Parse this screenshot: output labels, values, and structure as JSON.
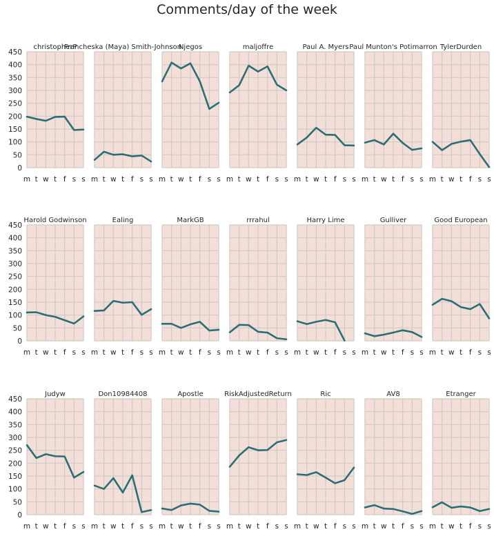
{
  "title": "Comments/day of the week",
  "colors": {
    "panel_bg": "#f4dfd8",
    "grid": "#cfc9c7",
    "line": "#2a6f73"
  },
  "chart_data": [
    {
      "type": "line",
      "title": "christopherP",
      "categories": [
        "m",
        "t",
        "w",
        "t",
        "f",
        "s",
        "s"
      ],
      "values": [
        198,
        189,
        182,
        197,
        198,
        146,
        148
      ],
      "ylim": [
        0,
        450
      ],
      "yticks": [
        0,
        50,
        100,
        150,
        200,
        250,
        300,
        350,
        400,
        450
      ]
    },
    {
      "type": "line",
      "title": "Francheska (Maya) Smith-Johnson",
      "categories": [
        "m",
        "t",
        "w",
        "t",
        "f",
        "s",
        "s"
      ],
      "values": [
        30,
        62,
        50,
        52,
        44,
        47,
        24
      ],
      "ylim": [
        0,
        450
      ],
      "yticks": [
        0,
        50,
        100,
        150,
        200,
        250,
        300,
        350,
        400,
        450
      ]
    },
    {
      "type": "line",
      "title": "Njegos",
      "categories": [
        "m",
        "t",
        "w",
        "t",
        "f",
        "s",
        "s"
      ],
      "values": [
        335,
        408,
        385,
        405,
        335,
        228,
        252
      ],
      "ylim": [
        0,
        450
      ],
      "yticks": [
        0,
        50,
        100,
        150,
        200,
        250,
        300,
        350,
        400,
        450
      ]
    },
    {
      "type": "line",
      "title": "maljoffre",
      "categories": [
        "m",
        "t",
        "w",
        "t",
        "f",
        "s",
        "s"
      ],
      "values": [
        292,
        320,
        396,
        373,
        393,
        322,
        300
      ],
      "ylim": [
        0,
        450
      ],
      "yticks": [
        0,
        50,
        100,
        150,
        200,
        250,
        300,
        350,
        400,
        450
      ]
    },
    {
      "type": "line",
      "title": "Paul A. Myers",
      "categories": [
        "m",
        "t",
        "w",
        "t",
        "f",
        "s",
        "s"
      ],
      "values": [
        90,
        117,
        155,
        128,
        127,
        87,
        86
      ],
      "ylim": [
        0,
        450
      ],
      "yticks": [
        0,
        50,
        100,
        150,
        200,
        250,
        300,
        350,
        400,
        450
      ]
    },
    {
      "type": "line",
      "title": "Paul Munton's Potimarron",
      "categories": [
        "m",
        "t",
        "w",
        "t",
        "f",
        "s",
        "s"
      ],
      "values": [
        97,
        107,
        90,
        132,
        96,
        69,
        75
      ],
      "ylim": [
        0,
        450
      ],
      "yticks": [
        0,
        50,
        100,
        150,
        200,
        250,
        300,
        350,
        400,
        450
      ]
    },
    {
      "type": "line",
      "title": "TylerDurden",
      "categories": [
        "m",
        "t",
        "w",
        "t",
        "f",
        "s",
        "s"
      ],
      "values": [
        100,
        68,
        92,
        101,
        107,
        53,
        2
      ],
      "ylim": [
        0,
        450
      ],
      "yticks": [
        0,
        50,
        100,
        150,
        200,
        250,
        300,
        350,
        400,
        450
      ]
    },
    {
      "type": "line",
      "title": "Harold Godwinson",
      "categories": [
        "m",
        "t",
        "w",
        "t",
        "f",
        "s",
        "s"
      ],
      "values": [
        110,
        111,
        100,
        93,
        80,
        67,
        95
      ],
      "ylim": [
        0,
        450
      ],
      "yticks": [
        0,
        50,
        100,
        150,
        200,
        250,
        300,
        350,
        400,
        450
      ]
    },
    {
      "type": "line",
      "title": "Ealing",
      "categories": [
        "m",
        "t",
        "w",
        "t",
        "f",
        "s",
        "s"
      ],
      "values": [
        116,
        118,
        155,
        148,
        150,
        101,
        123
      ],
      "ylim": [
        0,
        450
      ],
      "yticks": [
        0,
        50,
        100,
        150,
        200,
        250,
        300,
        350,
        400,
        450
      ]
    },
    {
      "type": "line",
      "title": "MarkGB",
      "categories": [
        "m",
        "t",
        "w",
        "t",
        "f",
        "s",
        "s"
      ],
      "values": [
        66,
        66,
        50,
        64,
        74,
        40,
        43
      ],
      "ylim": [
        0,
        450
      ],
      "yticks": [
        0,
        50,
        100,
        150,
        200,
        250,
        300,
        350,
        400,
        450
      ]
    },
    {
      "type": "line",
      "title": "rrrahul",
      "categories": [
        "m",
        "t",
        "w",
        "t",
        "f",
        "s",
        "s"
      ],
      "values": [
        33,
        62,
        61,
        35,
        32,
        10,
        6
      ],
      "ylim": [
        0,
        450
      ],
      "yticks": [
        0,
        50,
        100,
        150,
        200,
        250,
        300,
        350,
        400,
        450
      ]
    },
    {
      "type": "line",
      "title": "Harry Lime",
      "categories": [
        "m",
        "t",
        "w",
        "t",
        "f",
        "s",
        "s"
      ],
      "values": [
        76,
        65,
        74,
        81,
        72,
        1,
        null
      ],
      "ylim": [
        0,
        450
      ],
      "yticks": [
        0,
        50,
        100,
        150,
        200,
        250,
        300,
        350,
        400,
        450
      ]
    },
    {
      "type": "line",
      "title": "Gulliver",
      "categories": [
        "m",
        "t",
        "w",
        "t",
        "f",
        "s",
        "s"
      ],
      "values": [
        29,
        18,
        24,
        32,
        41,
        34,
        15
      ],
      "ylim": [
        0,
        450
      ],
      "yticks": [
        0,
        50,
        100,
        150,
        200,
        250,
        300,
        350,
        400,
        450
      ]
    },
    {
      "type": "line",
      "title": "Good European",
      "categories": [
        "m",
        "t",
        "w",
        "t",
        "f",
        "s",
        "s"
      ],
      "values": [
        140,
        163,
        154,
        131,
        123,
        143,
        87
      ],
      "ylim": [
        0,
        450
      ],
      "yticks": [
        0,
        50,
        100,
        150,
        200,
        250,
        300,
        350,
        400,
        450
      ]
    },
    {
      "type": "line",
      "title": "Judyw",
      "categories": [
        "m",
        "t",
        "w",
        "t",
        "f",
        "s",
        "s"
      ],
      "values": [
        270,
        220,
        235,
        227,
        226,
        144,
        166
      ],
      "ylim": [
        0,
        450
      ],
      "yticks": [
        0,
        50,
        100,
        150,
        200,
        250,
        300,
        350,
        400,
        450
      ]
    },
    {
      "type": "line",
      "title": "Don10984408",
      "categories": [
        "m",
        "t",
        "w",
        "t",
        "f",
        "s",
        "s"
      ],
      "values": [
        113,
        100,
        142,
        86,
        153,
        10,
        18
      ],
      "ylim": [
        0,
        450
      ],
      "yticks": [
        0,
        50,
        100,
        150,
        200,
        250,
        300,
        350,
        400,
        450
      ]
    },
    {
      "type": "line",
      "title": "Apostle",
      "categories": [
        "m",
        "t",
        "w",
        "t",
        "f",
        "s",
        "s"
      ],
      "values": [
        24,
        18,
        36,
        43,
        39,
        15,
        12
      ],
      "ylim": [
        0,
        450
      ],
      "yticks": [
        0,
        50,
        100,
        150,
        200,
        250,
        300,
        350,
        400,
        450
      ]
    },
    {
      "type": "line",
      "title": "RiskAdjustedReturn",
      "categories": [
        "m",
        "t",
        "w",
        "t",
        "f",
        "s",
        "s"
      ],
      "values": [
        186,
        230,
        262,
        250,
        251,
        281,
        290
      ],
      "ylim": [
        0,
        450
      ],
      "yticks": [
        0,
        50,
        100,
        150,
        200,
        250,
        300,
        350,
        400,
        450
      ]
    },
    {
      "type": "line",
      "title": "Ric",
      "categories": [
        "m",
        "t",
        "w",
        "t",
        "f",
        "s",
        "s"
      ],
      "values": [
        157,
        154,
        165,
        144,
        122,
        134,
        183
      ],
      "ylim": [
        0,
        450
      ],
      "yticks": [
        0,
        50,
        100,
        150,
        200,
        250,
        300,
        350,
        400,
        450
      ]
    },
    {
      "type": "line",
      "title": "AV8",
      "categories": [
        "m",
        "t",
        "w",
        "t",
        "f",
        "s",
        "s"
      ],
      "values": [
        28,
        37,
        24,
        22,
        13,
        3,
        14
      ],
      "ylim": [
        0,
        450
      ],
      "yticks": [
        0,
        50,
        100,
        150,
        200,
        250,
        300,
        350,
        400,
        450
      ]
    },
    {
      "type": "line",
      "title": "Etranger",
      "categories": [
        "m",
        "t",
        "w",
        "t",
        "f",
        "s",
        "s"
      ],
      "values": [
        29,
        48,
        27,
        32,
        28,
        14,
        22
      ],
      "ylim": [
        0,
        450
      ],
      "yticks": [
        0,
        50,
        100,
        150,
        200,
        250,
        300,
        350,
        400,
        450
      ]
    }
  ]
}
